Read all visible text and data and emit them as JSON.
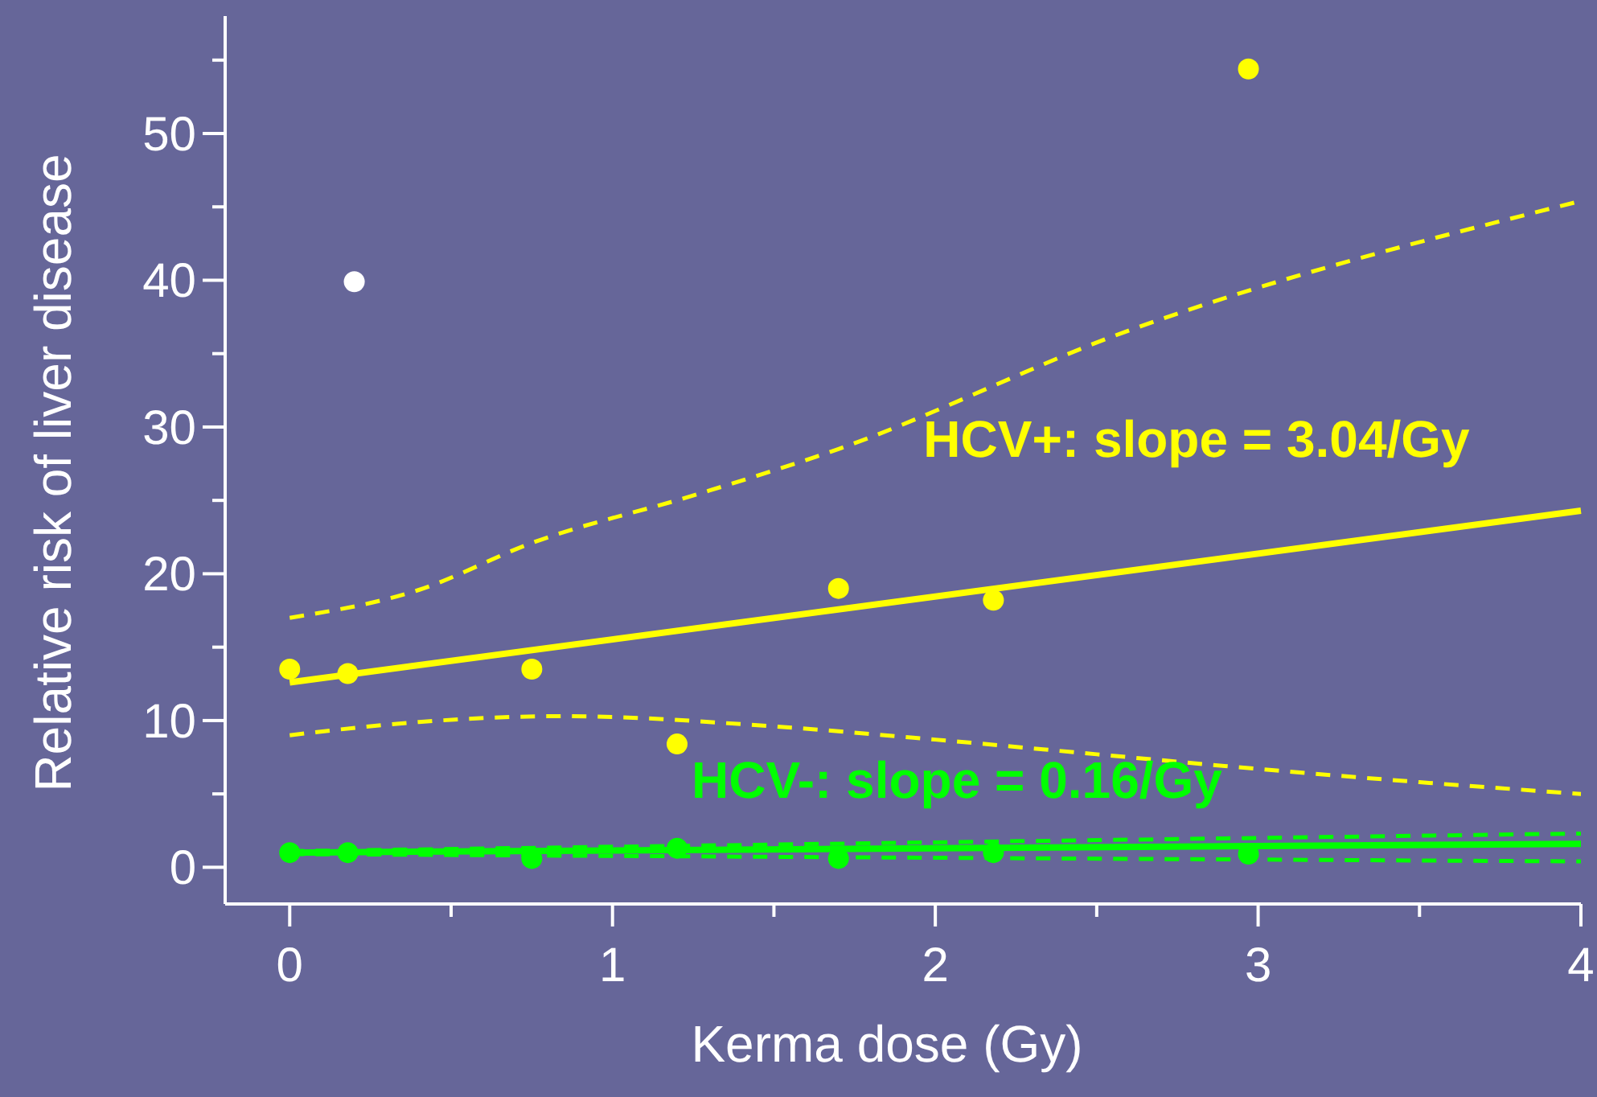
{
  "chart_data": {
    "type": "scatter",
    "xlabel": "Kerma dose (Gy)",
    "ylabel": "Relative risk of liver disease",
    "xlim": [
      -0.2,
      4
    ],
    "xticks": [
      0,
      {
        "value": 0.5,
        "label": null
      },
      1,
      {
        "value": 1.5,
        "label": null
      },
      2,
      {
        "value": 2.5,
        "label": null
      },
      3,
      {
        "value": 3.5,
        "label": null
      },
      4
    ],
    "ylim": [
      -2.5,
      58
    ],
    "yticks": [
      0,
      {
        "value": 5,
        "label": null
      },
      10,
      {
        "value": 15,
        "label": null
      },
      20,
      {
        "value": 25,
        "label": null
      },
      30,
      {
        "value": 35,
        "label": null
      },
      40,
      {
        "value": 45,
        "label": null
      },
      50,
      {
        "value": 55,
        "label": null
      }
    ],
    "grid": false,
    "series": [
      {
        "type": "line",
        "color": "#ffff00",
        "line_style": "solid",
        "marker": "none",
        "x": [
          0,
          4
        ],
        "values": [
          12.6,
          24.3
        ]
      },
      {
        "type": "line",
        "color": "#ffff00",
        "line_style": "dashed",
        "marker": "none",
        "x": [
          0,
          0.4,
          0.75,
          1.26,
          1.7,
          2.59,
          4
        ],
        "values": [
          17,
          18.9,
          22.1,
          25.4,
          28.5,
          36.5,
          45.4
        ]
      },
      {
        "type": "line",
        "color": "#ffff00",
        "line_style": "dashed",
        "marker": "none",
        "x": [
          0,
          0.4,
          0.85,
          1.5,
          2,
          2.5,
          3,
          3.5,
          4
        ],
        "values": [
          9,
          9.9,
          10.3,
          9.6,
          8.7,
          7.7,
          6.7,
          5.8,
          5
        ]
      },
      {
        "type": "scatter",
        "color": "#ffff00",
        "marker": "circle",
        "x": [
          0,
          0.18,
          0.75,
          1.2,
          1.7,
          2.18,
          2.97
        ],
        "values": [
          13.5,
          13.2,
          13.5,
          8.4,
          19,
          18.2,
          54.4
        ]
      },
      {
        "type": "scatter",
        "color": "#ffffff",
        "marker": "circle",
        "x": [
          0.2
        ],
        "values": [
          39.9
        ]
      },
      {
        "type": "line",
        "color": "#00ff00",
        "line_style": "solid",
        "marker": "none",
        "x": [
          0,
          4
        ],
        "values": [
          1,
          1.6
        ]
      },
      {
        "type": "line",
        "color": "#00ff00",
        "line_style": "dashed",
        "marker": "none",
        "x": [
          0,
          4
        ],
        "values": [
          1.1,
          2.3
        ]
      },
      {
        "type": "line",
        "color": "#00ff00",
        "line_style": "dashed",
        "marker": "none",
        "x": [
          0,
          4
        ],
        "values": [
          0.9,
          0.4
        ]
      },
      {
        "type": "scatter",
        "color": "#00ff00",
        "marker": "circle",
        "x": [
          0,
          0.18,
          0.75,
          1.2,
          1.7,
          2.18,
          2.97
        ],
        "values": [
          1,
          1,
          0.6,
          1.3,
          0.6,
          1,
          0.9
        ]
      }
    ],
    "annotations": [
      "HCV+: slope = 3.04/Gy",
      "HCV-: slope = 0.16/Gy"
    ]
  }
}
